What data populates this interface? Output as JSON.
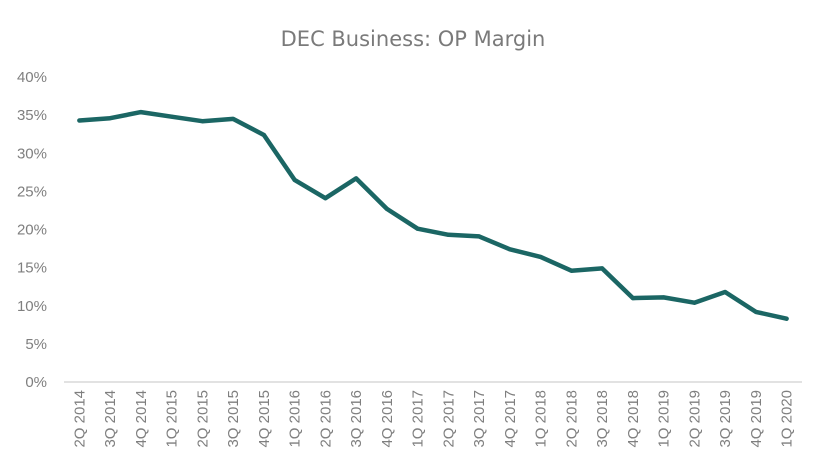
{
  "chart_data": {
    "type": "line",
    "title": "DEC Business: OP Margin",
    "xlabel": "",
    "ylabel": "",
    "ylim": [
      0,
      40
    ],
    "yticks": [
      "0%",
      "5%",
      "10%",
      "15%",
      "20%",
      "25%",
      "30%",
      "35%",
      "40%"
    ],
    "grid": false,
    "legend": "none",
    "line_color": "#1b6664",
    "axis_color": "#d9d9d9",
    "categories": [
      "2Q 2014",
      "3Q 2014",
      "4Q 2014",
      "1Q 2015",
      "2Q 2015",
      "3Q 2015",
      "4Q 2015",
      "1Q 2016",
      "2Q 2016",
      "3Q 2016",
      "4Q 2016",
      "1Q 2017",
      "2Q 2017",
      "3Q 2017",
      "4Q 2017",
      "1Q 2018",
      "2Q 2018",
      "3Q 2018",
      "4Q 2018",
      "1Q 2019",
      "2Q 2019",
      "3Q 2019",
      "4Q 2019",
      "1Q 2020"
    ],
    "series": [
      {
        "name": "OP Margin",
        "values": [
          34.3,
          34.6,
          35.4,
          34.8,
          34.2,
          34.5,
          32.4,
          26.5,
          24.1,
          26.7,
          22.7,
          20.1,
          19.3,
          19.1,
          17.4,
          16.4,
          14.6,
          14.9,
          11.0,
          11.1,
          10.4,
          11.8,
          9.2,
          8.3
        ]
      }
    ]
  }
}
